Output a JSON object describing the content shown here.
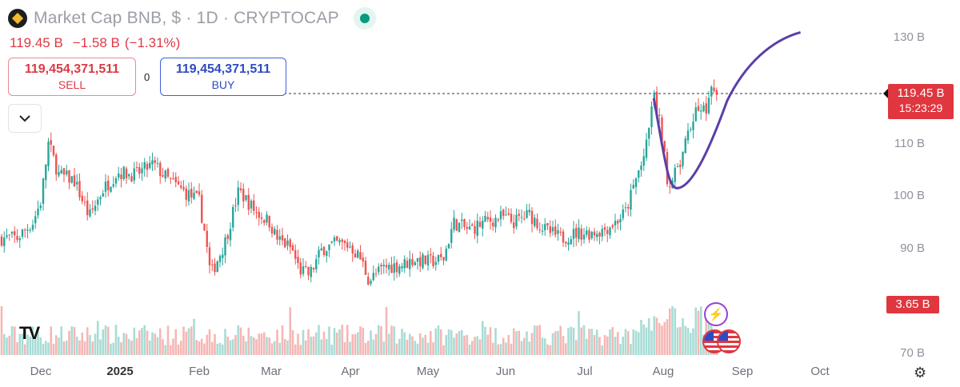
{
  "header": {
    "title": "Market Cap BNB, $ · 1D · CRYPTOCAP",
    "price": "119.45 B",
    "change": "−1.58 B",
    "change_pct": "(−1.31%)"
  },
  "trade": {
    "sell_value": "119,454,371,511",
    "sell_label": "SELL",
    "spread": "0",
    "buy_value": "119,454,371,511",
    "buy_label": "BUY"
  },
  "price_axis": {
    "labels": [
      "130 B",
      "110 B",
      "100 B",
      "90 B",
      "70 B"
    ],
    "current_price": "119.45 B",
    "countdown": "15:23:29",
    "volume_label": "3.65 B"
  },
  "time_axis": {
    "labels": [
      "Dec",
      "2025",
      "Feb",
      "Mar",
      "Apr",
      "May",
      "Jun",
      "Jul",
      "Aug",
      "Sep",
      "Oct"
    ]
  },
  "colors": {
    "up": "#26a69a",
    "down": "#ef5350",
    "drawing": "#5b3fa7",
    "price_tag": "#e0363f"
  },
  "icons": {
    "collapse": "chevron-down-icon",
    "logo": "tradingview-logo",
    "event_earnings": "lightning-icon",
    "event_economic": "us-flag-icon",
    "settings": "settings-icon"
  },
  "chart_data": {
    "type": "candlestick",
    "interval": "1D",
    "symbol": "Market Cap BNB",
    "ylim": [
      88,
      131
    ],
    "x_months": [
      "Dec",
      "2025",
      "Feb",
      "Mar",
      "Apr",
      "May",
      "Jun",
      "Jul",
      "Aug",
      "Sep",
      "Oct"
    ],
    "close_path": [
      [
        "Nov 22",
        92.0
      ],
      [
        "Nov 28",
        95.0
      ],
      [
        "Dec 1",
        99.0
      ],
      [
        "Dec 4",
        110.0
      ],
      [
        "Dec 8",
        104.0
      ],
      [
        "Dec 14",
        103.0
      ],
      [
        "Dec 20",
        96.0
      ],
      [
        "Dec 25",
        101.0
      ],
      [
        "Dec 31",
        104.5
      ],
      [
        "Jan 7",
        104.0
      ],
      [
        "Jan 14",
        106.0
      ],
      [
        "Jan 20",
        103.0
      ],
      [
        "Jan 27",
        100.5
      ],
      [
        "Feb 1",
        99.0
      ],
      [
        "Feb 3",
        93.0
      ],
      [
        "Feb 5",
        85.0
      ],
      [
        "Feb 10",
        91.0
      ],
      [
        "Feb 15",
        101.0
      ],
      [
        "Feb 21",
        97.0
      ],
      [
        "Feb 26",
        95.0
      ],
      [
        "Mar 3",
        92.0
      ],
      [
        "Mar 9",
        90.0
      ],
      [
        "Mar 12",
        86.0
      ],
      [
        "Mar 16",
        85.0
      ],
      [
        "Mar 21",
        90.0
      ],
      [
        "Mar 27",
        91.0
      ],
      [
        "Apr 1",
        90.5
      ],
      [
        "Apr 5",
        88.0
      ],
      [
        "Apr 8",
        84.0
      ],
      [
        "Apr 14",
        86.5
      ],
      [
        "Apr 21",
        87.0
      ],
      [
        "Apr 25",
        88.0
      ],
      [
        "May 1",
        87.5
      ],
      [
        "May 7",
        88.0
      ],
      [
        "May 11",
        95.0
      ],
      [
        "May 17",
        93.5
      ],
      [
        "May 23",
        95.0
      ],
      [
        "May 30",
        96.0
      ],
      [
        "Jun 4",
        95.0
      ],
      [
        "Jun 10",
        96.5
      ],
      [
        "Jun 16",
        93.5
      ],
      [
        "Jun 22",
        92.0
      ],
      [
        "Jun 28",
        93.0
      ],
      [
        "Jul 3",
        93.0
      ],
      [
        "Jul 8",
        93.5
      ],
      [
        "Jul 13",
        95.0
      ],
      [
        "Jul 17",
        97.0
      ],
      [
        "Jul 21",
        103.0
      ],
      [
        "Jul 25",
        109.0
      ],
      [
        "Jul 28",
        119.0
      ],
      [
        "Jul 31",
        112.0
      ],
      [
        "Aug 3",
        102.0
      ],
      [
        "Aug 7",
        105.0
      ],
      [
        "Aug 11",
        112.0
      ],
      [
        "Aug 14",
        117.0
      ],
      [
        "Aug 17",
        116.0
      ],
      [
        "Aug 20",
        119.5
      ],
      [
        "Aug 22",
        119.45
      ]
    ],
    "drawing_curve": "U-shaped projection from Jul 28 high, dipping to ~102 B around Aug 5 and rising to ~131 B by late Sep",
    "grid": false,
    "legend": "none"
  }
}
